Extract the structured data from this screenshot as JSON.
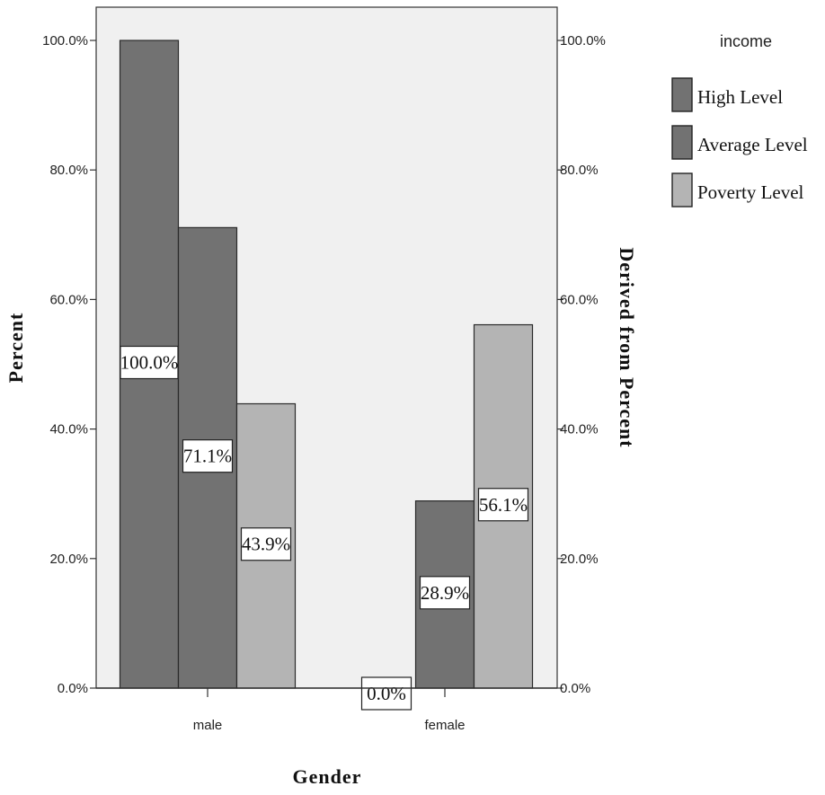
{
  "chart_data": {
    "type": "bar",
    "categories": [
      "male",
      "female"
    ],
    "series": [
      {
        "name": "High Level",
        "values": [
          100.0,
          0.0
        ],
        "labels": [
          "100.0%",
          "0.0%"
        ],
        "color": "#727272"
      },
      {
        "name": "Average Level",
        "values": [
          71.1,
          28.9
        ],
        "labels": [
          "71.1%",
          "28.9%"
        ],
        "color": "#727272"
      },
      {
        "name": "Poverty Level",
        "values": [
          43.9,
          56.1
        ],
        "labels": [
          "43.9%",
          "56.1%"
        ],
        "color": "#b4b4b4"
      }
    ],
    "xlabel": "Gender",
    "ylabel": "Percent",
    "y2label": "Derived from Percent",
    "ylim": [
      0,
      100
    ],
    "yticks": [
      "0.0%",
      "20.0%",
      "40.0%",
      "60.0%",
      "80.0%",
      "100.0%"
    ],
    "legend_title": "income",
    "legend_position": "top-right",
    "plot_background": "#f0f0f0",
    "grid": false
  }
}
